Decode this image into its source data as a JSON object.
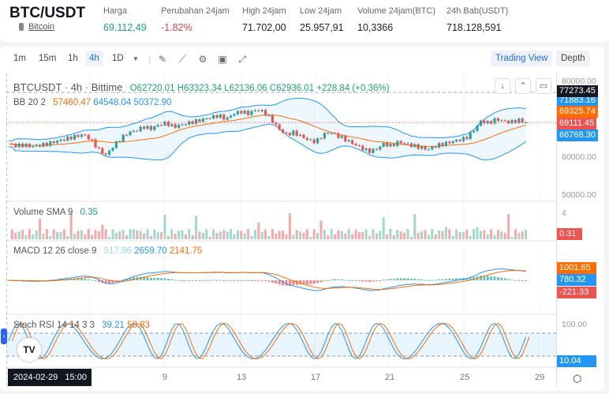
{
  "header": {
    "symbol": "BTC/USDT",
    "coin_link": "Bitcoin",
    "stats": [
      {
        "label": "Harga",
        "value": "69.112,49",
        "color": "#1aa37a"
      },
      {
        "label": "Perubahan 24jam",
        "value": "-1.82%",
        "color": "#e5414d"
      },
      {
        "label": "High 24jam",
        "value": "71.702,00"
      },
      {
        "label": "Low 24jam",
        "value": "25.957,91"
      },
      {
        "label": "Volume 24jam(BTC)",
        "value": "10,3366"
      },
      {
        "label": "24h Bab(USDT)",
        "value": "718.128,591"
      }
    ]
  },
  "toolbar": {
    "intervals": [
      "1m",
      "15m",
      "1h",
      "4h",
      "1D"
    ],
    "active": "4h",
    "icons": [
      "draw-icon",
      "indicator-icon",
      "settings-icon",
      "save-icon",
      "fullscreen-icon"
    ],
    "trading_view": "Trading View",
    "depth": "Depth"
  },
  "chart": {
    "title": "BTCUSDT · 4h · Bittime",
    "open": "O62720.01",
    "high": "H63323.34",
    "low": "L62136.06",
    "close": "C62936.01",
    "change": "+228.84 (+0.36%)",
    "bb": {
      "label": "BB 20 2",
      "v1": "57460.47",
      "v2": "64548.04",
      "v3": "50372.90"
    },
    "volume": {
      "label": "Volume SMA 9",
      "v": "0.35"
    },
    "macd": {
      "label": "MACD 12 26 close 9",
      "v1": "517.96",
      "v2": "2659.70",
      "v3": "2141.75"
    },
    "stoch": {
      "label": "Stoch RSI 14 14 3 3",
      "v1": "39.21",
      "v2": "58.83"
    },
    "price_axis": [
      "80000.00",
      "60000.00",
      "50000.00"
    ],
    "volume_axis": "4",
    "stoch_axis": "100.00",
    "tags": {
      "dark": "77273.45",
      "blue_hidden": "71883.16",
      "orange": "69325.74",
      "red": "69111.45",
      "blue": "66768.30",
      "vol": "0.31",
      "macd_orange": "1001.65",
      "macd_blue": "780.32",
      "macd_red": "-221.33",
      "stoch": "10.04"
    },
    "time_labels": [
      "9",
      "13",
      "17",
      "21",
      "25",
      "29"
    ],
    "crosshair_time": "2024-02-29   15:00",
    "closes": [
      63500,
      63000,
      63200,
      62800,
      63100,
      63400,
      64000,
      64500,
      65000,
      65500,
      66000,
      64500,
      62000,
      60500,
      63000,
      65000,
      66500,
      67000,
      68000,
      67500,
      68500,
      69000,
      68000,
      68500,
      69000,
      69500,
      70000,
      70500,
      71000,
      70000,
      71500,
      72000,
      71500,
      72500,
      72000,
      70000,
      67500,
      66000,
      66500,
      65500,
      64500,
      64000,
      66000,
      66500,
      65500,
      64500,
      63500,
      62500,
      61500,
      62000,
      63500,
      63000,
      64000,
      63500,
      63000,
      62500,
      62000,
      63000,
      63500,
      64000,
      64500,
      65000,
      67000,
      69500,
      69000,
      70000,
      69500,
      69200,
      69800,
      69100
    ],
    "colors": {
      "up": "#26a69a",
      "down": "#ef5350",
      "bb_band": "#2196f3",
      "bb_mid": "#ff6d00"
    }
  }
}
